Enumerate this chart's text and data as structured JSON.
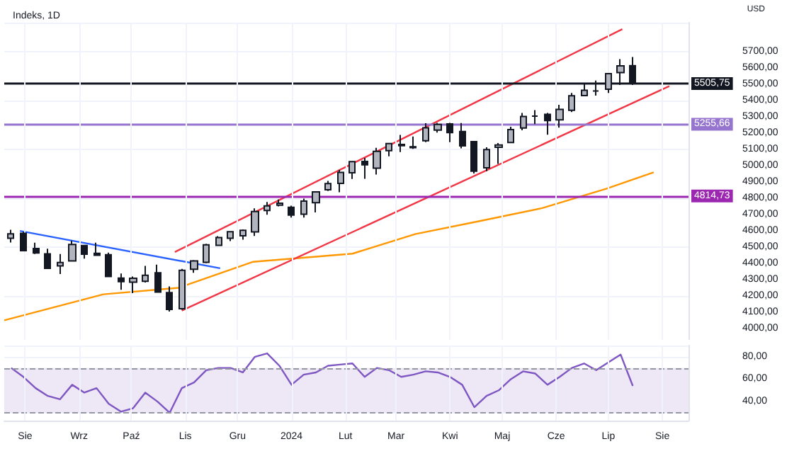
{
  "chart_data": [
    {
      "type": "candlestick",
      "title": "Indeks, 1D",
      "annotations": [
        "USD"
      ],
      "grid": true,
      "tick_labels": "y",
      "marker": "none",
      "xlim": [
        "2023-07-20",
        "2024-08-16"
      ],
      "xticks": [
        {
          "value": "2023-08-01",
          "label": null
        },
        {
          "value": "2023-09-01",
          "label": null
        },
        {
          "value": "2023-10-01",
          "label": null
        },
        {
          "value": "2023-11-01",
          "label": null
        },
        {
          "value": "2023-12-01",
          "label": null
        },
        {
          "value": "2024-01-01",
          "label": null
        },
        {
          "value": "2024-02-01",
          "label": null
        },
        {
          "value": "2024-03-01",
          "label": null
        },
        {
          "value": "2024-04-01",
          "label": null
        },
        {
          "value": "2024-05-01",
          "label": null
        },
        {
          "value": "2024-06-01",
          "label": null
        },
        {
          "value": "2024-07-01",
          "label": null
        },
        {
          "value": "2024-08-01",
          "label": null
        }
      ],
      "ylim": [
        3930,
        5880
      ],
      "yticks": [
        {
          "value": 4000,
          "label": "4000,00"
        },
        {
          "value": 4100,
          "label": "4100,00"
        },
        {
          "value": 4200,
          "label": "4200,00"
        },
        {
          "value": 4300,
          "label": "4300,00"
        },
        {
          "value": 4400,
          "label": "4400,00"
        },
        {
          "value": 4500,
          "label": "4500,00"
        },
        {
          "value": 4600,
          "label": "4600,00"
        },
        {
          "value": 4700,
          "label": "4700,00"
        },
        {
          "value": 4800,
          "label": "4800,00"
        },
        {
          "value": 4900,
          "label": "4900,00"
        },
        {
          "value": 5000,
          "label": "5000,00"
        },
        {
          "value": 5100,
          "label": "5100,00"
        },
        {
          "value": 5200,
          "label": "5200,00"
        },
        {
          "value": 5300,
          "label": "5300,00"
        },
        {
          "value": 5400,
          "label": "5400,00"
        },
        {
          "value": 5500,
          "label": "5500,00"
        },
        {
          "value": 5600,
          "label": "5600,00"
        },
        {
          "value": 5700,
          "label": "5700,00"
        }
      ],
      "ref_lines": [
        {
          "axis": "y",
          "value": 5505.75,
          "label": "5505,75",
          "color": "#131722"
        },
        {
          "axis": "y",
          "value": 5255.66,
          "label": "5255,66",
          "color": "#9575cd"
        },
        {
          "axis": "y",
          "value": 4814.73,
          "label": "4814,73",
          "color": "#9c27b0"
        }
      ],
      "series": [
        {
          "type": "candlestick",
          "color": "#131722",
          "x": [
            "2023-07-24",
            "2023-07-31",
            "2023-08-07",
            "2023-08-14",
            "2023-08-21",
            "2023-08-28",
            "2023-09-04",
            "2023-09-11",
            "2023-09-18",
            "2023-09-25",
            "2023-10-02",
            "2023-10-09",
            "2023-10-16",
            "2023-10-23",
            "2023-10-30",
            "2023-11-06",
            "2023-11-13",
            "2023-11-20",
            "2023-11-27",
            "2023-12-04",
            "2023-12-11",
            "2023-12-18",
            "2023-12-25",
            "2024-01-01",
            "2024-01-08",
            "2024-01-15",
            "2024-01-22",
            "2024-01-29",
            "2024-02-05",
            "2024-02-12",
            "2024-02-19",
            "2024-02-26",
            "2024-03-04",
            "2024-03-11",
            "2024-03-18",
            "2024-03-25",
            "2024-04-01",
            "2024-04-08",
            "2024-04-15",
            "2024-04-22",
            "2024-04-29",
            "2024-05-06",
            "2024-05-13",
            "2024-05-20",
            "2024-05-27",
            "2024-06-03",
            "2024-06-10",
            "2024-06-17",
            "2024-06-24",
            "2024-07-01",
            "2024-07-08",
            "2024-07-15"
          ],
          "ohlc": [
            [
              4555,
              4607,
              4528,
              4582
            ],
            [
              4585,
              4594,
              4474,
              4478
            ],
            [
              4492,
              4527,
              4458,
              4464
            ],
            [
              4459,
              4490,
              4365,
              4370
            ],
            [
              4385,
              4458,
              4335,
              4406
            ],
            [
              4415,
              4541,
              4412,
              4516
            ],
            [
              4510,
              4514,
              4430,
              4457
            ],
            [
              4462,
              4527,
              4446,
              4450
            ],
            [
              4453,
              4467,
              4316,
              4320
            ],
            [
              4310,
              4338,
              4238,
              4288
            ],
            [
              4285,
              4320,
              4217,
              4309
            ],
            [
              4290,
              4385,
              4283,
              4327
            ],
            [
              4342,
              4393,
              4223,
              4224
            ],
            [
              4220,
              4259,
              4104,
              4117
            ],
            [
              4121,
              4366,
              4115,
              4358
            ],
            [
              4364,
              4421,
              4342,
              4415
            ],
            [
              4407,
              4521,
              4401,
              4514
            ],
            [
              4511,
              4568,
              4510,
              4559
            ],
            [
              4555,
              4599,
              4537,
              4595
            ],
            [
              4570,
              4609,
              4546,
              4604
            ],
            [
              4594,
              4739,
              4569,
              4719
            ],
            [
              4725,
              4778,
              4699,
              4754
            ],
            [
              4758,
              4793,
              4751,
              4770
            ],
            [
              4745,
              4755,
              4682,
              4697
            ],
            [
              4703,
              4798,
              4682,
              4783
            ],
            [
              4773,
              4842,
              4714,
              4840
            ],
            [
              4853,
              4907,
              4845,
              4891
            ],
            [
              4892,
              4975,
              4837,
              4959
            ],
            [
              4957,
              5030,
              4919,
              5026
            ],
            [
              5027,
              5049,
              4920,
              5006
            ],
            [
              4986,
              5111,
              4946,
              5089
            ],
            [
              5093,
              5140,
              5058,
              5137
            ],
            [
              5131,
              5190,
              5085,
              5124
            ],
            [
              5112,
              5180,
              5104,
              5117
            ],
            [
              5154,
              5262,
              5145,
              5234
            ],
            [
              5219,
              5264,
              5204,
              5254
            ],
            [
              5258,
              5264,
              5146,
              5204
            ],
            [
              5211,
              5263,
              5107,
              5123
            ],
            [
              5149,
              5152,
              4953,
              4967
            ],
            [
              4988,
              5114,
              4967,
              5100
            ],
            [
              5114,
              5140,
              5012,
              5128
            ],
            [
              5143,
              5240,
              5142,
              5223
            ],
            [
              5233,
              5325,
              5218,
              5303
            ],
            [
              5305,
              5342,
              5256,
              5305
            ],
            [
              5316,
              5325,
              5191,
              5278
            ],
            [
              5283,
              5375,
              5235,
              5347
            ],
            [
              5341,
              5448,
              5331,
              5431
            ],
            [
              5432,
              5505,
              5428,
              5464
            ],
            [
              5460,
              5524,
              5432,
              5460
            ],
            [
              5471,
              5570,
              5448,
              5567
            ],
            [
              5573,
              5656,
              5497,
              5615
            ],
            [
              5616,
              5669,
              5497,
              5505.75
            ]
          ]
        },
        {
          "type": "line",
          "color": "#ff9800",
          "x": [
            "2023-07-20",
            "2023-09-15",
            "2023-10-28",
            "2023-12-10",
            "2024-02-05",
            "2024-03-12",
            "2024-04-18",
            "2024-05-24",
            "2024-06-30",
            "2024-07-27"
          ],
          "values": [
            4050,
            4210,
            4250,
            4410,
            4460,
            4580,
            4660,
            4740,
            4860,
            4960
          ]
        },
        {
          "type": "line",
          "color": "#2962ff",
          "x": [
            "2023-07-29",
            "2023-11-21"
          ],
          "values": [
            4600,
            4370
          ]
        },
        {
          "type": "line",
          "color": "#f23645",
          "x": [
            "2023-10-26",
            "2024-07-09"
          ],
          "values": [
            4470,
            5840
          ]
        },
        {
          "type": "line",
          "color": "#f23645",
          "x": [
            "2023-10-30",
            "2024-08-05"
          ],
          "values": [
            4110,
            5490
          ]
        }
      ]
    },
    {
      "type": "line",
      "grid": true,
      "marker": "none",
      "xlim": [
        "2023-07-20",
        "2024-08-16"
      ],
      "xticks": [
        {
          "value": "2023-08-01",
          "label": "Sie"
        },
        {
          "value": "2023-09-01",
          "label": "Wrz"
        },
        {
          "value": "2023-10-01",
          "label": "Paź"
        },
        {
          "value": "2023-11-01",
          "label": "Lis"
        },
        {
          "value": "2023-12-01",
          "label": "Gru"
        },
        {
          "value": "2024-01-01",
          "label": "2024"
        },
        {
          "value": "2024-02-01",
          "label": "Lut"
        },
        {
          "value": "2024-03-01",
          "label": "Mar"
        },
        {
          "value": "2024-04-01",
          "label": "Kwi"
        },
        {
          "value": "2024-05-01",
          "label": "Maj"
        },
        {
          "value": "2024-06-01",
          "label": "Cze"
        },
        {
          "value": "2024-07-01",
          "label": "Lip"
        },
        {
          "value": "2024-08-01",
          "label": "Sie"
        }
      ],
      "ylim": [
        23,
        90
      ],
      "yticks": [
        {
          "value": 40,
          "label": "40,00"
        },
        {
          "value": 60,
          "label": "60,00"
        },
        {
          "value": 80,
          "label": "80,00"
        }
      ],
      "ref_lines": [
        {
          "axis": "y",
          "value": 70,
          "color": "#9598a1",
          "line_style": "dashed"
        },
        {
          "axis": "y",
          "value": 30,
          "color": "#9598a1",
          "line_style": "dashed"
        }
      ],
      "bands": [
        {
          "axis": "y",
          "from": 30,
          "to": 70,
          "color": "#ede7f6"
        }
      ],
      "series": [
        {
          "color": "#7e57c2",
          "x": [
            "2023-07-24",
            "2023-07-31",
            "2023-08-07",
            "2023-08-14",
            "2023-08-21",
            "2023-08-28",
            "2023-09-04",
            "2023-09-11",
            "2023-09-18",
            "2023-09-25",
            "2023-10-02",
            "2023-10-09",
            "2023-10-16",
            "2023-10-23",
            "2023-10-30",
            "2023-11-06",
            "2023-11-13",
            "2023-11-20",
            "2023-11-27",
            "2023-12-04",
            "2023-12-11",
            "2023-12-18",
            "2023-12-25",
            "2024-01-01",
            "2024-01-08",
            "2024-01-15",
            "2024-01-22",
            "2024-01-29",
            "2024-02-05",
            "2024-02-12",
            "2024-02-19",
            "2024-02-26",
            "2024-03-04",
            "2024-03-11",
            "2024-03-18",
            "2024-03-25",
            "2024-04-01",
            "2024-04-08",
            "2024-04-15",
            "2024-04-22",
            "2024-04-29",
            "2024-05-06",
            "2024-05-13",
            "2024-05-20",
            "2024-05-27",
            "2024-06-03",
            "2024-06-10",
            "2024-06-17",
            "2024-06-24",
            "2024-07-01",
            "2024-07-08",
            "2024-07-15"
          ],
          "values": [
            70,
            62,
            52,
            45,
            42,
            55,
            48,
            52,
            38,
            31,
            34,
            48,
            40,
            30,
            52,
            57,
            68,
            70,
            70,
            66,
            80,
            83,
            72,
            55,
            64,
            66,
            72,
            73,
            74,
            62,
            70,
            68,
            62,
            64,
            67,
            66,
            62,
            55,
            35,
            45,
            50,
            60,
            67,
            65,
            55,
            62,
            70,
            74,
            68,
            75,
            82,
            54
          ]
        }
      ]
    }
  ]
}
